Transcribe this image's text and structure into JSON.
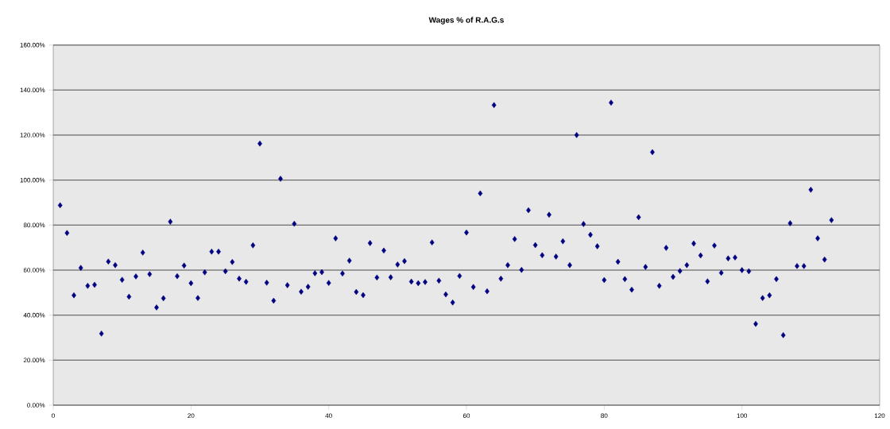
{
  "chart_data": {
    "type": "scatter",
    "title": "Wages % of R.A.G.s",
    "x": [
      1,
      2,
      3,
      4,
      5,
      6,
      7,
      8,
      9,
      10,
      11,
      12,
      13,
      14,
      15,
      16,
      17,
      18,
      19,
      20,
      21,
      22,
      23,
      24,
      25,
      26,
      27,
      28,
      29,
      30,
      31,
      32,
      33,
      34,
      35,
      36,
      37,
      38,
      39,
      40,
      41,
      42,
      43,
      44,
      45,
      46,
      47,
      48,
      49,
      50,
      51,
      52,
      53,
      54,
      55,
      56,
      57,
      58,
      59,
      60,
      61,
      62,
      63,
      64,
      65,
      66,
      67,
      68,
      69,
      70,
      71,
      72,
      73,
      74,
      75,
      76,
      77,
      78,
      79,
      80,
      81,
      82,
      83,
      84,
      85,
      86,
      87,
      88,
      89,
      90,
      91,
      92,
      93,
      94,
      95,
      96,
      97,
      98,
      99,
      100,
      101,
      102,
      103,
      104,
      105,
      106,
      107,
      108,
      109,
      110,
      111,
      112,
      113
    ],
    "values": [
      88.8,
      76.5,
      48.8,
      61,
      53,
      53.5,
      31.8,
      63.8,
      62.2,
      55.7,
      48.2,
      57.2,
      67.8,
      58.2,
      43.4,
      47.5,
      81.5,
      57.3,
      62,
      54.2,
      47.6,
      59,
      68.2,
      68.2,
      59.5,
      63.6,
      56.2,
      54.8,
      71,
      116.2,
      54.4,
      46.4,
      100.6,
      53.3,
      80.6,
      50.4,
      52.6,
      58.6,
      59.1,
      54.3,
      74.1,
      58.5,
      64.2,
      50.3,
      48.9,
      72,
      56.7,
      68.7,
      56.8,
      62.5,
      64,
      54.9,
      54.2,
      54.7,
      72.3,
      55.3,
      49.2,
      45.6,
      57.4,
      76.7,
      52.5,
      94.1,
      50.6,
      133.3,
      56.2,
      62.2,
      73.8,
      60.1,
      86.6,
      71.1,
      66.6,
      84.6,
      66,
      72.8,
      62.2,
      120,
      80.5,
      75.7,
      70.6,
      55.6,
      134.4,
      63.7,
      56,
      51.3,
      83.5,
      61.4,
      112.4,
      53,
      69.9,
      57,
      59.6,
      62.2,
      71.8,
      66.5,
      55,
      70.9,
      58.8,
      65.2,
      65.6,
      60,
      59.5,
      36.1,
      47.6,
      48.8,
      56,
      31.1,
      80.8,
      61.8,
      61.8,
      95.7,
      74.1,
      64.7,
      82.2
    ],
    "color": "#000080",
    "marker": "diamond",
    "grid": "y",
    "xlim": [
      0,
      120
    ],
    "xticks": [
      0,
      20,
      40,
      60,
      80,
      100,
      120
    ],
    "ylim": [
      0,
      160
    ],
    "yticks": [
      {
        "value": 0,
        "label": "0.00%"
      },
      {
        "value": 20,
        "label": "20.00%"
      },
      {
        "value": 40,
        "label": "40.00%"
      },
      {
        "value": 60,
        "label": "60.00%"
      },
      {
        "value": 80,
        "label": "80.00%"
      },
      {
        "value": 100,
        "label": "100.00%"
      },
      {
        "value": 120,
        "label": "120.00%"
      },
      {
        "value": 140,
        "label": "140.00%"
      },
      {
        "value": 160,
        "label": "160.00%"
      }
    ]
  }
}
